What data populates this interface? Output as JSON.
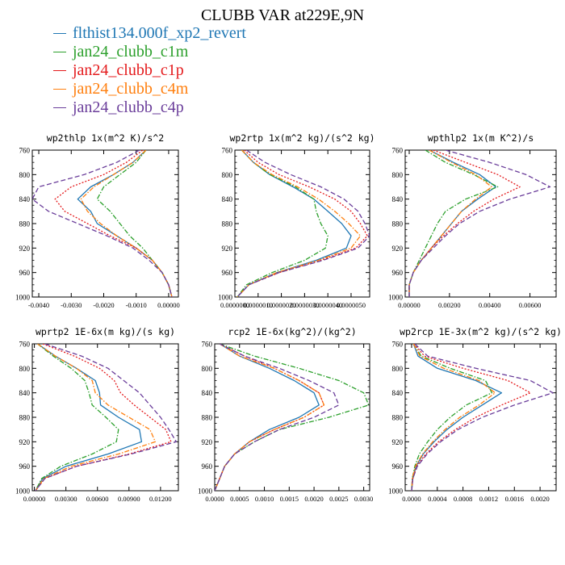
{
  "page": {
    "title": "CLUBB VAR at229E,9N"
  },
  "legend": {
    "items": [
      {
        "label": "flthist134.000f_xp2_revert",
        "color": "#1f77b4",
        "dash": "solid"
      },
      {
        "label": "jan24_clubb_c1m",
        "color": "#2ca02c",
        "dash": "dashdot"
      },
      {
        "label": "jan24_clubb_c1p",
        "color": "#e41a1c",
        "dash": "dot"
      },
      {
        "label": "jan24_clubb_c4m",
        "color": "#ff7f0e",
        "dash": "dashdot"
      },
      {
        "label": "jan24_clubb_c4p",
        "color": "#6a3d9a",
        "dash": "dash"
      }
    ]
  },
  "chart_data": [
    {
      "type": "line",
      "title": "wp2thlp  1x(m^2 K)/s^2",
      "ylim": [
        760,
        1000
      ],
      "y_reversed": true,
      "xlim": [
        -0.0042,
        0.0003
      ],
      "xticks": [
        -0.004,
        -0.003,
        -0.002,
        -0.001,
        0.0
      ],
      "xtick_labels": [
        "-0.0040",
        "-0.0030",
        "-0.0020",
        "-0.0010",
        "0.00000"
      ],
      "yticks": [
        760,
        800,
        840,
        880,
        920,
        960,
        1000
      ],
      "levels": [
        760,
        780,
        800,
        820,
        840,
        860,
        880,
        900,
        920,
        940,
        960,
        980,
        1000
      ],
      "series": [
        {
          "values": [
            -0.0007,
            -0.0011,
            -0.0017,
            -0.0024,
            -0.0028,
            -0.0024,
            -0.0022,
            -0.0016,
            -0.001,
            -0.0005,
            -0.0002,
            0.0,
            0.0001
          ]
        },
        {
          "values": [
            -0.0007,
            -0.001,
            -0.0015,
            -0.002,
            -0.0022,
            -0.0018,
            -0.0015,
            -0.0012,
            -0.0008,
            -0.0005,
            -0.0002,
            0.0,
            0.0001
          ]
        },
        {
          "values": [
            -0.0008,
            -0.0013,
            -0.002,
            -0.003,
            -0.0035,
            -0.0032,
            -0.0025,
            -0.0018,
            -0.001,
            -0.0005,
            -0.0002,
            0.0,
            0.0001
          ]
        },
        {
          "values": [
            -0.0007,
            -0.0011,
            -0.0017,
            -0.0023,
            -0.0027,
            -0.0025,
            -0.0021,
            -0.0016,
            -0.001,
            -0.0005,
            -0.0002,
            0.0,
            0.0001
          ]
        },
        {
          "values": [
            -0.0009,
            -0.0016,
            -0.0026,
            -0.004,
            -0.0042,
            -0.0037,
            -0.0028,
            -0.0019,
            -0.0011,
            -0.0006,
            -0.0002,
            0.0,
            0.0001
          ]
        }
      ]
    },
    {
      "type": "line",
      "title": "wp2rtp  1x(m^2 kg)/(s^2 kg)",
      "ylim": [
        760,
        1000
      ],
      "y_reversed": true,
      "xlim": [
        0,
        5.8e-06
      ],
      "xticks": [
        0,
        1e-06,
        2e-06,
        3e-06,
        4e-06,
        5e-06
      ],
      "xtick_labels": [
        "0.0000000",
        "0.0000010",
        "0.0000020",
        "0.0000030",
        "0.0000040",
        "0.0000050"
      ],
      "yticks": [
        760,
        800,
        840,
        880,
        920,
        960,
        1000
      ],
      "levels": [
        760,
        780,
        800,
        820,
        840,
        860,
        880,
        900,
        920,
        940,
        960,
        980,
        1000
      ],
      "series": [
        {
          "values": [
            3e-07,
            8e-07,
            1.5e-06,
            2.5e-06,
            3.4e-06,
            4e-06,
            4.6e-06,
            5e-06,
            4.8e-06,
            3.5e-06,
            1.8e-06,
            6e-07,
            1e-07
          ]
        },
        {
          "values": [
            3e-07,
            8e-07,
            1.5e-06,
            2.6e-06,
            3.4e-06,
            3.5e-06,
            3.7e-06,
            4e-06,
            3.9e-06,
            3e-06,
            1.6e-06,
            5e-07,
            1e-07
          ]
        },
        {
          "values": [
            4e-07,
            1e-06,
            1.9e-06,
            3.2e-06,
            4.3e-06,
            5e-06,
            5.4e-06,
            5.7e-06,
            5.2e-06,
            3.7e-06,
            1.9e-06,
            6e-07,
            1e-07
          ]
        },
        {
          "values": [
            3e-07,
            8e-07,
            1.6e-06,
            2.7e-06,
            3.6e-06,
            4.3e-06,
            4.9e-06,
            5.4e-06,
            5e-06,
            3.6e-06,
            1.8e-06,
            6e-07,
            1e-07
          ]
        },
        {
          "values": [
            5e-07,
            1.3e-06,
            2.4e-06,
            3.7e-06,
            4.7e-06,
            5.3e-06,
            5.6e-06,
            5.8e-06,
            5.3e-06,
            3.8e-06,
            1.9e-06,
            6e-07,
            1e-07
          ]
        }
      ]
    },
    {
      "type": "line",
      "title": "wpthlp2  1x(m K^2)/s",
      "ylim": [
        760,
        1000
      ],
      "y_reversed": true,
      "xlim": [
        -0.0002,
        0.0073
      ],
      "xticks": [
        0,
        0.002,
        0.004,
        0.006
      ],
      "xtick_labels": [
        "0.00000",
        "0.00200",
        "0.00400",
        "0.00600"
      ],
      "yticks": [
        760,
        800,
        840,
        880,
        920,
        960,
        1000
      ],
      "levels": [
        760,
        780,
        800,
        820,
        840,
        860,
        880,
        900,
        920,
        940,
        960,
        980,
        1000
      ],
      "series": [
        {
          "values": [
            0.001,
            0.0022,
            0.0035,
            0.0043,
            0.0034,
            0.0026,
            0.0021,
            0.0016,
            0.0011,
            0.0006,
            0.0002,
            0.0,
            0.0
          ]
        },
        {
          "values": [
            0.0008,
            0.0018,
            0.0032,
            0.0044,
            0.0028,
            0.0018,
            0.0014,
            0.0011,
            0.0008,
            0.0005,
            0.0002,
            0.0,
            0.0
          ]
        },
        {
          "values": [
            0.0012,
            0.0028,
            0.0044,
            0.0055,
            0.0042,
            0.0032,
            0.0024,
            0.0017,
            0.0011,
            0.0006,
            0.0002,
            0.0,
            0.0
          ]
        },
        {
          "values": [
            0.001,
            0.0021,
            0.0033,
            0.0041,
            0.0033,
            0.0026,
            0.0021,
            0.0016,
            0.0011,
            0.0006,
            0.0002,
            0.0,
            0.0
          ]
        },
        {
          "values": [
            0.0018,
            0.004,
            0.0058,
            0.007,
            0.005,
            0.0035,
            0.0025,
            0.0018,
            0.0012,
            0.0006,
            0.0002,
            0.0,
            0.0
          ]
        }
      ]
    },
    {
      "type": "line",
      "title": "wprtp2  1E-6x(m kg)/(s kg)",
      "ylim": [
        760,
        1000
      ],
      "y_reversed": true,
      "xlim": [
        -0.0002,
        0.0137
      ],
      "xticks": [
        0,
        0.003,
        0.006,
        0.009,
        0.012
      ],
      "xtick_labels": [
        "0.00000",
        "0.00300",
        "0.00600",
        "0.00900",
        "0.01200"
      ],
      "yticks": [
        760,
        800,
        840,
        880,
        920,
        960,
        1000
      ],
      "levels": [
        760,
        780,
        800,
        820,
        840,
        860,
        880,
        900,
        920,
        940,
        960,
        980,
        1000
      ],
      "series": [
        {
          "values": [
            0.0003,
            0.002,
            0.004,
            0.0058,
            0.0062,
            0.0063,
            0.008,
            0.01,
            0.0102,
            0.007,
            0.003,
            0.0008,
            0.0001
          ]
        },
        {
          "values": [
            0.0003,
            0.0018,
            0.0035,
            0.0048,
            0.0052,
            0.0055,
            0.0068,
            0.008,
            0.0078,
            0.0055,
            0.0025,
            0.0007,
            0.0001
          ]
        },
        {
          "values": [
            0.0008,
            0.0038,
            0.0062,
            0.0076,
            0.0082,
            0.0095,
            0.011,
            0.0125,
            0.013,
            0.009,
            0.004,
            0.001,
            0.0001
          ]
        },
        {
          "values": [
            0.0003,
            0.002,
            0.004,
            0.0055,
            0.0058,
            0.007,
            0.009,
            0.011,
            0.0115,
            0.008,
            0.0035,
            0.0009,
            0.0001
          ]
        },
        {
          "values": [
            0.001,
            0.0045,
            0.007,
            0.0085,
            0.01,
            0.011,
            0.012,
            0.0128,
            0.0135,
            0.0092,
            0.004,
            0.001,
            0.0001
          ]
        }
      ]
    },
    {
      "type": "line",
      "title": "rcp2  1E-6x(kg^2)/(kg^2)",
      "ylim": [
        760,
        1000
      ],
      "y_reversed": true,
      "xlim": [
        0,
        0.00312
      ],
      "xticks": [
        0,
        0.0005,
        0.001,
        0.0015,
        0.002,
        0.0025,
        0.003
      ],
      "xtick_labels": [
        "0.0000",
        "0.0005",
        "0.0010",
        "0.0015",
        "0.0020",
        "0.0025",
        "0.0030"
      ],
      "yticks": [
        760,
        800,
        840,
        880,
        920,
        960,
        1000
      ],
      "levels": [
        760,
        780,
        800,
        820,
        840,
        860,
        880,
        900,
        920,
        940,
        960,
        980,
        1000
      ],
      "series": [
        {
          "values": [
            0.0001,
            0.0005,
            0.0011,
            0.0016,
            0.002,
            0.0021,
            0.0017,
            0.0011,
            0.0007,
            0.0004,
            0.0002,
            0.0001,
            0.0
          ]
        },
        {
          "values": [
            0.0001,
            0.0008,
            0.0017,
            0.0025,
            0.003,
            0.0031,
            0.0023,
            0.0013,
            0.0008,
            0.0004,
            0.0002,
            0.0001,
            0.0
          ]
        },
        {
          "values": [
            0.0001,
            0.0006,
            0.0012,
            0.0017,
            0.0021,
            0.0022,
            0.0018,
            0.0012,
            0.0007,
            0.0004,
            0.0002,
            0.0001,
            0.0
          ]
        },
        {
          "values": [
            0.0001,
            0.0005,
            0.0012,
            0.0017,
            0.0021,
            0.0022,
            0.0018,
            0.0012,
            0.0007,
            0.0004,
            0.0002,
            0.0001,
            0.0
          ]
        },
        {
          "values": [
            0.0001,
            0.0006,
            0.0013,
            0.0019,
            0.0024,
            0.0025,
            0.002,
            0.0013,
            0.0008,
            0.0004,
            0.0002,
            0.0001,
            0.0
          ]
        }
      ]
    },
    {
      "type": "line",
      "title": "wp2rcp  1E-3x(m^2 kg)/(s^2 kg)",
      "ylim": [
        760,
        1000
      ],
      "y_reversed": true,
      "xlim": [
        -0.0001,
        0.00225
      ],
      "xticks": [
        0,
        0.0004,
        0.0008,
        0.0012,
        0.0016,
        0.002
      ],
      "xtick_labels": [
        "0.0000",
        "0.0004",
        "0.0008",
        "0.0012",
        "0.0016",
        "0.0020"
      ],
      "yticks": [
        760,
        800,
        840,
        880,
        920,
        960,
        1000
      ],
      "levels": [
        760,
        780,
        800,
        820,
        840,
        860,
        880,
        900,
        920,
        940,
        960,
        980,
        1000
      ],
      "series": [
        {
          "values": [
            3e-05,
            0.0001,
            0.0004,
            0.001,
            0.0014,
            0.0011,
            0.0008,
            0.00055,
            0.00035,
            0.00018,
            7e-05,
            2e-05,
            0.0
          ]
        },
        {
          "values": [
            3e-05,
            0.00015,
            0.0006,
            0.00115,
            0.00125,
            0.00085,
            0.0006,
            0.0004,
            0.00025,
            0.00012,
            5e-05,
            1e-05,
            0.0
          ]
        },
        {
          "values": [
            4e-05,
            0.0002,
            0.0008,
            0.0015,
            0.00185,
            0.0014,
            0.001,
            0.00068,
            0.00042,
            0.00022,
            8e-05,
            2e-05,
            0.0
          ]
        },
        {
          "values": [
            3e-05,
            0.00013,
            0.0005,
            0.00105,
            0.0013,
            0.00105,
            0.00075,
            0.00052,
            0.00033,
            0.00017,
            6e-05,
            1e-05,
            0.0
          ]
        },
        {
          "values": [
            5e-05,
            0.00025,
            0.001,
            0.00185,
            0.0022,
            0.0016,
            0.0011,
            0.00072,
            0.00045,
            0.00024,
            9e-05,
            2e-05,
            0.0
          ]
        }
      ]
    }
  ]
}
